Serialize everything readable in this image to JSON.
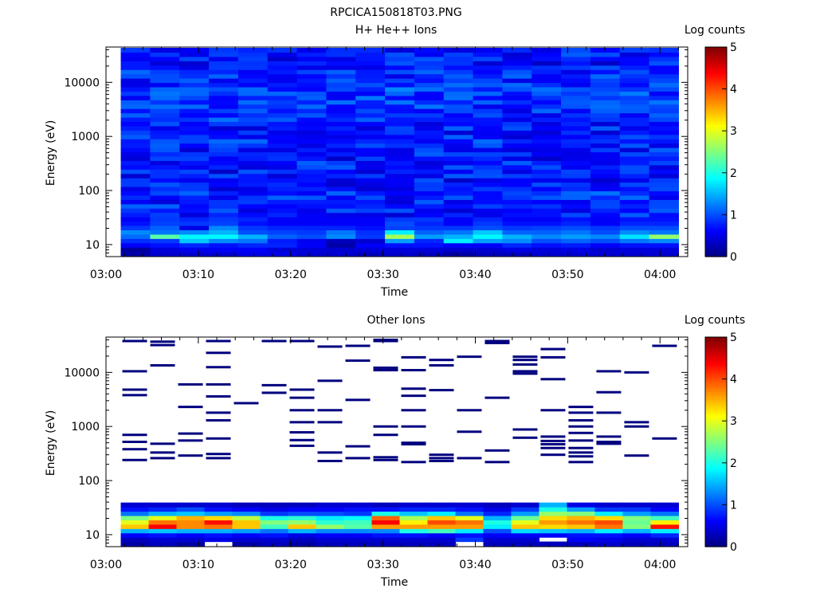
{
  "file_title": "RPCICA150818T03.PNG",
  "chart_data": [
    {
      "type": "heatmap",
      "title": "H+ He++ Ions",
      "xlabel": "Time",
      "ylabel": "Energy (eV)",
      "x_ticks": [
        "03:00",
        "03:10",
        "03:20",
        "03:30",
        "03:40",
        "03:50",
        "04:00"
      ],
      "y_ticks": [
        "10",
        "100",
        "1000",
        "10000"
      ],
      "y_scale": "log",
      "y_range": [
        6,
        45000
      ],
      "x_range": [
        "03:00",
        "04:03"
      ],
      "colorbar": {
        "label": "Log counts",
        "ticks": [
          "0",
          "1",
          "2",
          "3",
          "4",
          "5"
        ],
        "range": [
          0,
          5
        ]
      },
      "profile_top": [
        0.75,
        0.8,
        0.8,
        0.85,
        0.75,
        0.7,
        0.75,
        0.7,
        0.75,
        0.7,
        0.75,
        0.75,
        0.8,
        0.75,
        0.75,
        0.75,
        0.85,
        0.8,
        0.85,
        0.9,
        0.9,
        0.95,
        0.85,
        0.8,
        0.8,
        0.75,
        0.7,
        0.75,
        0.7
      ],
      "columns": [
        {
          "time": "03:02",
          "bottom": [
            0.2,
            0.15,
            0.6,
            0.85,
            1.15,
            1.3,
            0.9,
            0.7,
            0.6
          ]
        },
        {
          "time": "03:05",
          "bottom": [
            0.4,
            0.45,
            0.7,
            0.9,
            2.3,
            1.2,
            1.1,
            0.95,
            0.9
          ]
        },
        {
          "time": "03:08",
          "bottom": [
            0.4,
            0.55,
            0.8,
            1.6,
            1.85,
            1.3,
            0.5,
            0.9,
            0.8
          ]
        },
        {
          "time": "03:12",
          "bottom": [
            0.4,
            0.6,
            0.7,
            1.3,
            1.85,
            1.5,
            1.3,
            0.95,
            0.9
          ]
        },
        {
          "time": "03:15",
          "bottom": [
            0.5,
            0.6,
            0.8,
            1.2,
            1.5,
            1.0,
            0.9,
            0.7,
            0.8
          ]
        },
        {
          "time": "03:18",
          "bottom": [
            0.5,
            0.45,
            0.8,
            0.75,
            1.1,
            0.95,
            0.8,
            0.6,
            0.6
          ]
        },
        {
          "time": "03:22",
          "bottom": [
            0.4,
            0.45,
            0.6,
            0.55,
            1.0,
            0.9,
            0.8,
            0.6,
            0.6
          ]
        },
        {
          "time": "03:25",
          "bottom": [
            0.4,
            0.4,
            0.2,
            0.3,
            1.3,
            1.2,
            0.8,
            0.6,
            0.6
          ]
        },
        {
          "time": "03:28",
          "bottom": [
            0.3,
            0.45,
            0.6,
            0.4,
            0.9,
            0.85,
            0.7,
            0.6,
            0.6
          ]
        },
        {
          "time": "03:31",
          "bottom": [
            0.4,
            0.45,
            0.7,
            1.4,
            2.7,
            1.8,
            0.95,
            1.0,
            0.9
          ]
        },
        {
          "time": "03:35",
          "bottom": [
            0.3,
            0.45,
            0.7,
            0.8,
            1.4,
            1.1,
            0.9,
            0.8,
            0.9
          ]
        },
        {
          "time": "03:38",
          "bottom": [
            0.2,
            0.4,
            0.6,
            1.8,
            1.5,
            1.2,
            0.9,
            0.6,
            0.6
          ]
        },
        {
          "time": "03:41",
          "bottom": [
            0.3,
            0.4,
            0.6,
            1.4,
            1.85,
            1.6,
            1.0,
            0.9,
            0.8
          ]
        },
        {
          "time": "03:45",
          "bottom": [
            0.3,
            0.5,
            0.8,
            1.3,
            1.5,
            1.1,
            0.9,
            0.7,
            0.6
          ]
        },
        {
          "time": "03:48",
          "bottom": [
            0.4,
            0.45,
            0.7,
            1.0,
            1.3,
            1.1,
            0.95,
            0.7,
            0.6
          ]
        },
        {
          "time": "03:51",
          "bottom": [
            0.4,
            0.5,
            0.75,
            1.1,
            1.4,
            1.2,
            1.0,
            0.8,
            0.7
          ]
        },
        {
          "time": "03:55",
          "bottom": [
            0.4,
            0.4,
            0.6,
            1.0,
            1.3,
            1.0,
            0.9,
            0.6,
            0.6
          ]
        },
        {
          "time": "03:58",
          "bottom": [
            0.4,
            0.45,
            0.7,
            1.2,
            1.75,
            1.3,
            1.0,
            0.8,
            0.7
          ]
        },
        {
          "time": "04:01",
          "bottom": [
            0.4,
            0.45,
            0.7,
            1.3,
            2.6,
            1.2,
            1.0,
            0.8,
            0.7
          ]
        }
      ]
    },
    {
      "type": "heatmap",
      "title": "Other Ions",
      "xlabel": "Time",
      "ylabel": "Energy (eV)",
      "x_ticks": [
        "03:00",
        "03:10",
        "03:20",
        "03:30",
        "03:40",
        "03:50",
        "04:00"
      ],
      "y_ticks": [
        "10",
        "100",
        "1000",
        "10000"
      ],
      "y_scale": "log",
      "y_range": [
        6,
        45000
      ],
      "x_range": [
        "03:00",
        "04:03"
      ],
      "colorbar": {
        "label": "Log counts",
        "ticks": [
          "0",
          "1",
          "2",
          "3",
          "4",
          "5"
        ],
        "range": [
          0,
          5
        ]
      },
      "columns": [
        {
          "time": "03:02",
          "bottom": [
            0.2,
            0.3,
            0.6,
            1.5,
            3.4,
            3.0,
            2.5,
            1.2,
            0.7,
            0.4
          ],
          "sparse": [
            240,
            380,
            520,
            700,
            3800,
            4800,
            10500,
            38000
          ]
        },
        {
          "time": "03:05",
          "bottom": [
            0.3,
            0.4,
            0.7,
            1.6,
            4.4,
            3.8,
            3.0,
            1.5,
            0.8,
            0.4
          ],
          "sparse": [
            260,
            330,
            480,
            13500,
            32000,
            37000
          ]
        },
        {
          "time": "03:08",
          "bottom": [
            0.2,
            0.4,
            0.6,
            1.5,
            3.7,
            3.7,
            3.5,
            1.6,
            1.0,
            0.4
          ],
          "sparse": [
            290,
            550,
            740,
            2300,
            6000
          ]
        },
        {
          "time": "03:12",
          "bottom": [
            null,
            0.5,
            0.7,
            1.5,
            3.8,
            4.3,
            3.3,
            1.4,
            0.7,
            0.4
          ],
          "sparse": [
            260,
            310,
            600,
            1300,
            1800,
            3600,
            6000,
            12500,
            23000,
            38000
          ]
        },
        {
          "time": "03:15",
          "bottom": [
            0.2,
            0.4,
            0.6,
            1.4,
            3.4,
            3.4,
            2.8,
            1.3,
            0.6,
            0.3
          ],
          "sparse": [
            2700
          ]
        },
        {
          "time": "03:18",
          "bottom": [
            0.3,
            0.4,
            0.7,
            1.2,
            2.2,
            2.5,
            2.0,
            0.9,
            0.5,
            0.3
          ],
          "sparse": [
            4200,
            5800,
            38000
          ]
        },
        {
          "time": "03:22",
          "bottom": [
            0.2,
            0.3,
            0.5,
            1.5,
            3.4,
            2.6,
            2.1,
            1.0,
            0.6,
            0.3
          ],
          "sparse": [
            440,
            560,
            780,
            1200,
            2000,
            3400,
            4800,
            38000
          ]
        },
        {
          "time": "03:25",
          "bottom": [
            0.3,
            0.4,
            0.6,
            1.3,
            2.6,
            2.1,
            1.8,
            1.0,
            0.6,
            0.4
          ],
          "sparse": [
            230,
            330,
            1200,
            2000,
            7000,
            30000
          ]
        },
        {
          "time": "03:28",
          "bottom": [
            0.3,
            0.4,
            0.6,
            1.3,
            2.3,
            2.2,
            1.9,
            0.9,
            0.7,
            0.4
          ],
          "sparse": [
            260,
            430,
            3100,
            16500,
            31000
          ]
        },
        {
          "time": "03:31",
          "bottom": [
            0.3,
            0.4,
            0.7,
            1.3,
            3.6,
            4.4,
            3.9,
            2.0,
            0.7,
            0.3
          ],
          "sparse": [
            240,
            270,
            700,
            1000,
            11000,
            12200,
            38000,
            40000
          ]
        },
        {
          "time": "03:35",
          "bottom": [
            0.3,
            0.4,
            0.7,
            2.0,
            3.6,
            3.2,
            2.7,
            1.6,
            0.8,
            0.4
          ],
          "sparse": [
            220,
            470,
            500,
            1000,
            2000,
            3700,
            5000,
            11000,
            19000
          ]
        },
        {
          "time": "03:38",
          "bottom": [
            0.3,
            0.4,
            0.6,
            2.2,
            3.6,
            4.0,
            3.4,
            1.8,
            0.8,
            0.4
          ],
          "sparse": [
            230,
            260,
            300,
            4700,
            13500,
            17000
          ]
        },
        {
          "time": "03:41",
          "bottom": [
            null,
            0.9,
            0.7,
            1.8,
            3.6,
            3.8,
            3.0,
            1.2,
            0.7,
            0.4
          ],
          "sparse": [
            260,
            800,
            2000,
            19500
          ]
        },
        {
          "time": "03:45",
          "bottom": [
            0.3,
            0.4,
            0.6,
            1.0,
            1.8,
            2.0,
            1.5,
            0.8,
            0.5,
            0.3
          ],
          "sparse": [
            220,
            360,
            3400,
            35000,
            38000
          ]
        },
        {
          "time": "03:48",
          "bottom": [
            0.3,
            0.4,
            0.6,
            1.7,
            3.4,
            3.0,
            2.4,
            1.4,
            0.9,
            0.4
          ],
          "sparse": [
            620,
            880,
            9500,
            10500,
            14000,
            17000,
            19500
          ]
        },
        {
          "time": "03:51",
          "bottom": [
            0.3,
            null,
            0.6,
            1.6,
            3.3,
            3.6,
            3.3,
            2.6,
            2.0,
            1.5
          ],
          "sparse": [
            300,
            400,
            470,
            540,
            650,
            2000,
            7500,
            19000,
            27000
          ]
        },
        {
          "time": "03:55",
          "bottom": [
            0.3,
            0.6,
            0.7,
            1.5,
            3.4,
            3.8,
            3.5,
            2.5,
            1.4,
            0.5
          ],
          "sparse": [
            220,
            280,
            330,
            400,
            550,
            760,
            1000,
            1300,
            1800,
            2300
          ]
        },
        {
          "time": "03:58",
          "bottom": [
            0.4,
            0.5,
            0.7,
            1.8,
            3.8,
            4.0,
            3.3,
            1.8,
            0.9,
            0.4
          ],
          "sparse": [
            480,
            520,
            650,
            1800,
            4300,
            10500
          ]
        },
        {
          "time": "04:01",
          "bottom": [
            0.3,
            0.4,
            0.6,
            1.5,
            2.5,
            2.4,
            2.5,
            1.4,
            0.9,
            0.4
          ],
          "sparse": [
            290,
            1000,
            1200,
            10000
          ]
        },
        {
          "time": "04:02",
          "bottom": [
            0.3,
            0.4,
            0.8,
            1.8,
            4.3,
            3.2,
            2.2,
            1.2,
            0.6,
            0.4
          ],
          "sparse": [
            600,
            31000
          ]
        }
      ]
    }
  ]
}
